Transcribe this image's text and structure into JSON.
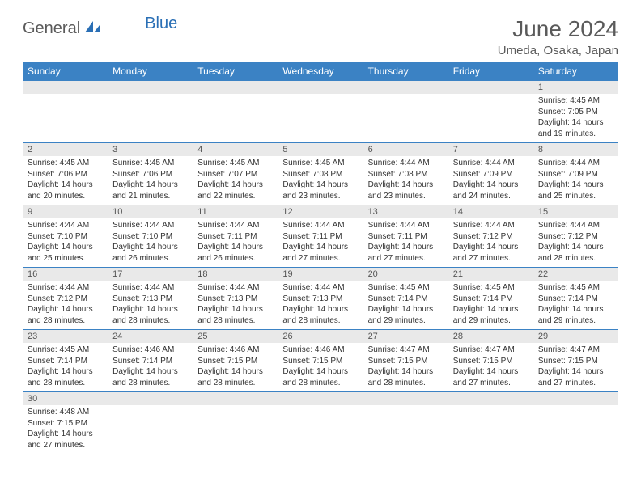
{
  "brand": {
    "part1": "General",
    "part2": "Blue"
  },
  "title": "June 2024",
  "location": "Umeda, Osaka, Japan",
  "colors": {
    "header_bg": "#3b82c4",
    "header_text": "#ffffff",
    "numrow_bg": "#e9e9e9",
    "text": "#333333",
    "title_color": "#5a5a5a",
    "brand_blue": "#2a6fb5"
  },
  "day_headers": [
    "Sunday",
    "Monday",
    "Tuesday",
    "Wednesday",
    "Thursday",
    "Friday",
    "Saturday"
  ],
  "weeks": [
    {
      "nums": [
        "",
        "",
        "",
        "",
        "",
        "",
        "1"
      ],
      "cells": [
        null,
        null,
        null,
        null,
        null,
        null,
        {
          "sunrise": "Sunrise: 4:45 AM",
          "sunset": "Sunset: 7:05 PM",
          "day1": "Daylight: 14 hours",
          "day2": "and 19 minutes."
        }
      ]
    },
    {
      "nums": [
        "2",
        "3",
        "4",
        "5",
        "6",
        "7",
        "8"
      ],
      "cells": [
        {
          "sunrise": "Sunrise: 4:45 AM",
          "sunset": "Sunset: 7:06 PM",
          "day1": "Daylight: 14 hours",
          "day2": "and 20 minutes."
        },
        {
          "sunrise": "Sunrise: 4:45 AM",
          "sunset": "Sunset: 7:06 PM",
          "day1": "Daylight: 14 hours",
          "day2": "and 21 minutes."
        },
        {
          "sunrise": "Sunrise: 4:45 AM",
          "sunset": "Sunset: 7:07 PM",
          "day1": "Daylight: 14 hours",
          "day2": "and 22 minutes."
        },
        {
          "sunrise": "Sunrise: 4:45 AM",
          "sunset": "Sunset: 7:08 PM",
          "day1": "Daylight: 14 hours",
          "day2": "and 23 minutes."
        },
        {
          "sunrise": "Sunrise: 4:44 AM",
          "sunset": "Sunset: 7:08 PM",
          "day1": "Daylight: 14 hours",
          "day2": "and 23 minutes."
        },
        {
          "sunrise": "Sunrise: 4:44 AM",
          "sunset": "Sunset: 7:09 PM",
          "day1": "Daylight: 14 hours",
          "day2": "and 24 minutes."
        },
        {
          "sunrise": "Sunrise: 4:44 AM",
          "sunset": "Sunset: 7:09 PM",
          "day1": "Daylight: 14 hours",
          "day2": "and 25 minutes."
        }
      ]
    },
    {
      "nums": [
        "9",
        "10",
        "11",
        "12",
        "13",
        "14",
        "15"
      ],
      "cells": [
        {
          "sunrise": "Sunrise: 4:44 AM",
          "sunset": "Sunset: 7:10 PM",
          "day1": "Daylight: 14 hours",
          "day2": "and 25 minutes."
        },
        {
          "sunrise": "Sunrise: 4:44 AM",
          "sunset": "Sunset: 7:10 PM",
          "day1": "Daylight: 14 hours",
          "day2": "and 26 minutes."
        },
        {
          "sunrise": "Sunrise: 4:44 AM",
          "sunset": "Sunset: 7:11 PM",
          "day1": "Daylight: 14 hours",
          "day2": "and 26 minutes."
        },
        {
          "sunrise": "Sunrise: 4:44 AM",
          "sunset": "Sunset: 7:11 PM",
          "day1": "Daylight: 14 hours",
          "day2": "and 27 minutes."
        },
        {
          "sunrise": "Sunrise: 4:44 AM",
          "sunset": "Sunset: 7:11 PM",
          "day1": "Daylight: 14 hours",
          "day2": "and 27 minutes."
        },
        {
          "sunrise": "Sunrise: 4:44 AM",
          "sunset": "Sunset: 7:12 PM",
          "day1": "Daylight: 14 hours",
          "day2": "and 27 minutes."
        },
        {
          "sunrise": "Sunrise: 4:44 AM",
          "sunset": "Sunset: 7:12 PM",
          "day1": "Daylight: 14 hours",
          "day2": "and 28 minutes."
        }
      ]
    },
    {
      "nums": [
        "16",
        "17",
        "18",
        "19",
        "20",
        "21",
        "22"
      ],
      "cells": [
        {
          "sunrise": "Sunrise: 4:44 AM",
          "sunset": "Sunset: 7:12 PM",
          "day1": "Daylight: 14 hours",
          "day2": "and 28 minutes."
        },
        {
          "sunrise": "Sunrise: 4:44 AM",
          "sunset": "Sunset: 7:13 PM",
          "day1": "Daylight: 14 hours",
          "day2": "and 28 minutes."
        },
        {
          "sunrise": "Sunrise: 4:44 AM",
          "sunset": "Sunset: 7:13 PM",
          "day1": "Daylight: 14 hours",
          "day2": "and 28 minutes."
        },
        {
          "sunrise": "Sunrise: 4:44 AM",
          "sunset": "Sunset: 7:13 PM",
          "day1": "Daylight: 14 hours",
          "day2": "and 28 minutes."
        },
        {
          "sunrise": "Sunrise: 4:45 AM",
          "sunset": "Sunset: 7:14 PM",
          "day1": "Daylight: 14 hours",
          "day2": "and 29 minutes."
        },
        {
          "sunrise": "Sunrise: 4:45 AM",
          "sunset": "Sunset: 7:14 PM",
          "day1": "Daylight: 14 hours",
          "day2": "and 29 minutes."
        },
        {
          "sunrise": "Sunrise: 4:45 AM",
          "sunset": "Sunset: 7:14 PM",
          "day1": "Daylight: 14 hours",
          "day2": "and 29 minutes."
        }
      ]
    },
    {
      "nums": [
        "23",
        "24",
        "25",
        "26",
        "27",
        "28",
        "29"
      ],
      "cells": [
        {
          "sunrise": "Sunrise: 4:45 AM",
          "sunset": "Sunset: 7:14 PM",
          "day1": "Daylight: 14 hours",
          "day2": "and 28 minutes."
        },
        {
          "sunrise": "Sunrise: 4:46 AM",
          "sunset": "Sunset: 7:14 PM",
          "day1": "Daylight: 14 hours",
          "day2": "and 28 minutes."
        },
        {
          "sunrise": "Sunrise: 4:46 AM",
          "sunset": "Sunset: 7:15 PM",
          "day1": "Daylight: 14 hours",
          "day2": "and 28 minutes."
        },
        {
          "sunrise": "Sunrise: 4:46 AM",
          "sunset": "Sunset: 7:15 PM",
          "day1": "Daylight: 14 hours",
          "day2": "and 28 minutes."
        },
        {
          "sunrise": "Sunrise: 4:47 AM",
          "sunset": "Sunset: 7:15 PM",
          "day1": "Daylight: 14 hours",
          "day2": "and 28 minutes."
        },
        {
          "sunrise": "Sunrise: 4:47 AM",
          "sunset": "Sunset: 7:15 PM",
          "day1": "Daylight: 14 hours",
          "day2": "and 27 minutes."
        },
        {
          "sunrise": "Sunrise: 4:47 AM",
          "sunset": "Sunset: 7:15 PM",
          "day1": "Daylight: 14 hours",
          "day2": "and 27 minutes."
        }
      ]
    },
    {
      "nums": [
        "30",
        "",
        "",
        "",
        "",
        "",
        ""
      ],
      "cells": [
        {
          "sunrise": "Sunrise: 4:48 AM",
          "sunset": "Sunset: 7:15 PM",
          "day1": "Daylight: 14 hours",
          "day2": "and 27 minutes."
        },
        null,
        null,
        null,
        null,
        null,
        null
      ]
    }
  ]
}
